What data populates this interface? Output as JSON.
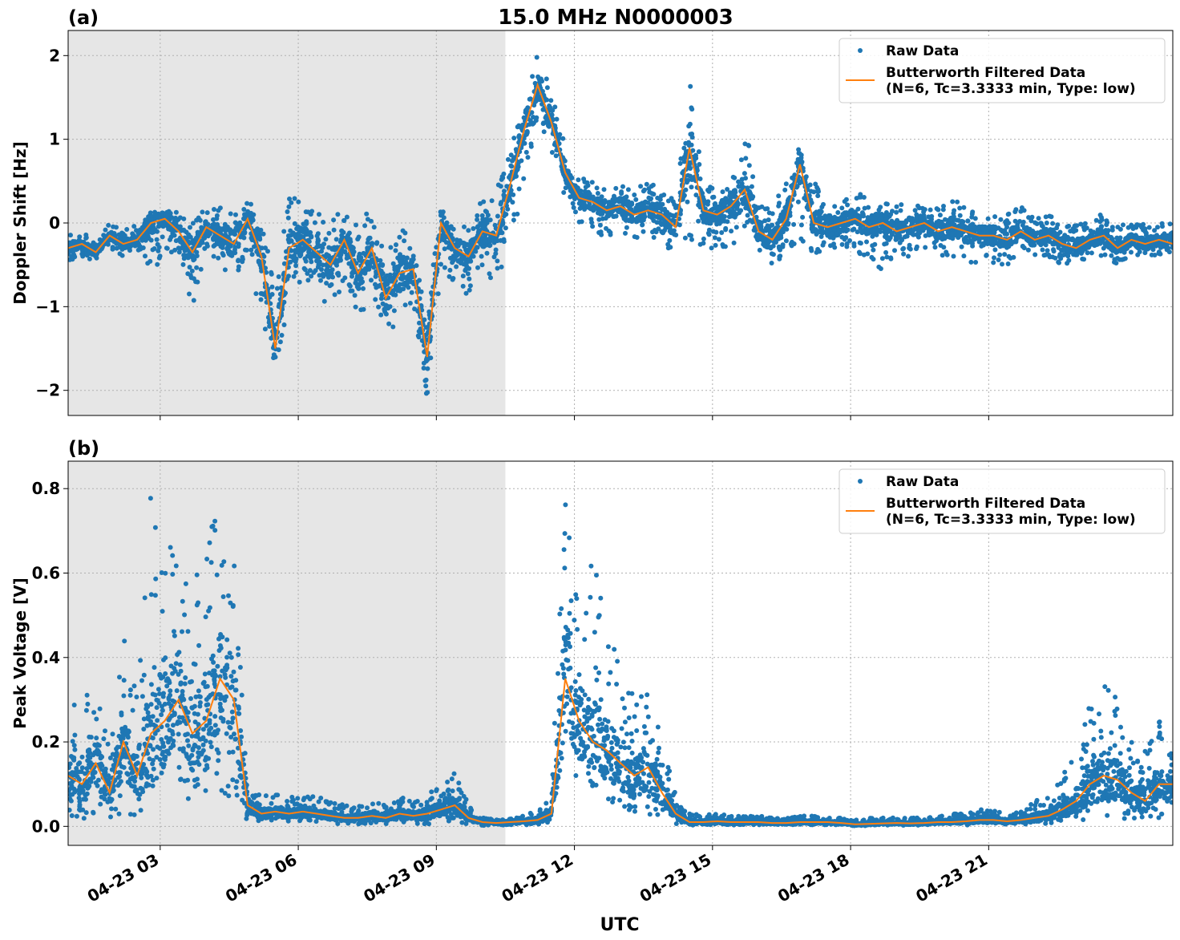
{
  "figure": {
    "title": "15.0 MHz N0000003",
    "xlabel": "UTC"
  },
  "colors": {
    "raw": "#1f77b4",
    "filtered": "#ff7f0e",
    "night_shade": "#e6e6e6",
    "grid": "#b0b0b0"
  },
  "chart_data": [
    {
      "type": "scatter",
      "panel_label": "(a)",
      "title": "15.0 MHz N0000003",
      "xlabel": "",
      "ylabel": "Doppler Shift [Hz]",
      "x_unit": "hours UTC on 04-23",
      "xlim": [
        1.0,
        25.0
      ],
      "ylim": [
        -2.3,
        2.3
      ],
      "yticks": [
        -2,
        -1,
        0,
        1,
        2
      ],
      "ytick_labels": [
        "−2",
        "−1",
        "0",
        "1",
        "2"
      ],
      "shaded_region": [
        1.0,
        10.5
      ],
      "grid": true,
      "legend_position": "top-right",
      "legend": [
        "Raw Data",
        "Butterworth Filtered Data",
        "(N=6, Tc=3.3333 min, Type: low)"
      ],
      "series": [
        {
          "name": "Butterworth Filtered Data",
          "x": [
            1.0,
            1.3,
            1.6,
            1.9,
            2.2,
            2.5,
            2.8,
            3.1,
            3.4,
            3.7,
            4.0,
            4.3,
            4.6,
            4.9,
            5.2,
            5.5,
            5.8,
            6.1,
            6.4,
            6.7,
            7.0,
            7.3,
            7.6,
            7.9,
            8.2,
            8.5,
            8.8,
            9.1,
            9.4,
            9.7,
            10.0,
            10.3,
            10.6,
            10.9,
            11.2,
            11.5,
            11.8,
            12.1,
            12.4,
            12.7,
            13.0,
            13.3,
            13.6,
            13.9,
            14.2,
            14.5,
            14.8,
            15.1,
            15.4,
            15.7,
            16.0,
            16.3,
            16.6,
            16.9,
            17.2,
            17.5,
            17.8,
            18.1,
            18.4,
            18.7,
            19.0,
            19.3,
            19.6,
            19.9,
            20.2,
            20.5,
            20.8,
            21.1,
            21.4,
            21.7,
            22.0,
            22.3,
            22.6,
            22.9,
            23.2,
            23.5,
            23.8,
            24.1,
            24.4,
            24.7,
            25.0
          ],
          "y": [
            -0.3,
            -0.25,
            -0.35,
            -0.15,
            -0.25,
            -0.2,
            0.0,
            0.05,
            -0.1,
            -0.35,
            -0.05,
            -0.15,
            -0.25,
            0.05,
            -0.4,
            -1.5,
            -0.3,
            -0.2,
            -0.35,
            -0.5,
            -0.2,
            -0.6,
            -0.3,
            -0.9,
            -0.6,
            -0.55,
            -1.6,
            0.0,
            -0.3,
            -0.4,
            -0.1,
            -0.15,
            0.45,
            1.1,
            1.65,
            1.2,
            0.6,
            0.3,
            0.25,
            0.15,
            0.2,
            0.1,
            0.15,
            0.1,
            -0.05,
            0.9,
            0.15,
            0.1,
            0.2,
            0.4,
            -0.1,
            -0.2,
            0.05,
            0.7,
            0.0,
            -0.05,
            0.0,
            0.05,
            -0.05,
            0.0,
            -0.1,
            -0.05,
            0.0,
            -0.1,
            -0.05,
            -0.1,
            -0.15,
            -0.15,
            -0.2,
            -0.1,
            -0.2,
            -0.15,
            -0.25,
            -0.3,
            -0.2,
            -0.15,
            -0.3,
            -0.2,
            -0.25,
            -0.2,
            -0.25
          ]
        },
        {
          "name": "Raw Data",
          "x": [
            1.0,
            1.3,
            1.6,
            1.9,
            2.2,
            2.5,
            2.8,
            3.1,
            3.4,
            3.7,
            4.0,
            4.3,
            4.6,
            4.9,
            5.2,
            5.5,
            5.8,
            6.1,
            6.4,
            6.7,
            7.0,
            7.3,
            7.6,
            7.9,
            8.2,
            8.5,
            8.8,
            9.1,
            9.4,
            9.7,
            10.0,
            10.3,
            10.6,
            10.9,
            11.2,
            11.5,
            11.8,
            12.1,
            12.4,
            12.7,
            13.0,
            13.3,
            13.6,
            13.9,
            14.2,
            14.5,
            14.8,
            15.1,
            15.4,
            15.7,
            16.0,
            16.3,
            16.6,
            16.9,
            17.2,
            17.5,
            17.8,
            18.1,
            18.4,
            18.7,
            19.0,
            19.3,
            19.6,
            19.9,
            20.2,
            20.5,
            20.8,
            21.1,
            21.4,
            21.7,
            22.0,
            22.3,
            22.6,
            22.9,
            23.2,
            23.5,
            23.8,
            24.1,
            24.4,
            24.7,
            25.0
          ],
          "y_min": [
            -0.5,
            -0.4,
            -0.5,
            -0.3,
            -0.4,
            -0.4,
            -0.7,
            -0.3,
            -0.4,
            -1.0,
            -0.3,
            -0.5,
            -0.8,
            -0.3,
            -1.2,
            -1.95,
            -0.9,
            -0.7,
            -0.8,
            -1.1,
            -0.7,
            -1.2,
            -0.8,
            -1.4,
            -1.2,
            -1.0,
            -2.1,
            -0.6,
            -0.7,
            -0.9,
            -0.6,
            -0.7,
            -0.3,
            0.4,
            1.3,
            0.8,
            0.3,
            0.0,
            -0.1,
            -0.2,
            -0.1,
            -0.2,
            -0.1,
            -0.3,
            -0.35,
            -0.2,
            -0.3,
            -0.3,
            -0.3,
            -0.2,
            -0.4,
            -0.5,
            -0.4,
            -0.2,
            -0.4,
            -0.5,
            -0.3,
            -0.35,
            -0.4,
            -0.6,
            -0.4,
            -0.4,
            -0.3,
            -0.4,
            -0.4,
            -0.5,
            -0.5,
            -0.5,
            -0.5,
            -0.4,
            -0.4,
            -0.4,
            -0.5,
            -0.5,
            -0.4,
            -0.4,
            -0.5,
            -0.4,
            -0.4,
            -0.4,
            -0.4
          ],
          "y_max": [
            -0.1,
            -0.1,
            -0.2,
            0.0,
            -0.1,
            0.0,
            0.1,
            0.15,
            0.2,
            0.0,
            0.2,
            0.2,
            0.1,
            0.3,
            0.1,
            -0.8,
            0.4,
            0.3,
            0.2,
            0.0,
            0.2,
            0.0,
            0.2,
            -0.2,
            -0.1,
            0.0,
            -1.0,
            0.2,
            0.1,
            0.0,
            0.3,
            0.4,
            0.9,
            1.4,
            2.05,
            1.6,
            0.9,
            0.6,
            0.5,
            0.4,
            0.5,
            0.45,
            0.5,
            0.4,
            0.3,
            1.75,
            0.5,
            0.45,
            0.5,
            1.2,
            0.4,
            0.2,
            0.5,
            0.95,
            0.5,
            0.3,
            0.3,
            0.4,
            0.3,
            0.3,
            0.2,
            0.3,
            0.3,
            0.2,
            0.3,
            0.3,
            0.1,
            0.15,
            0.1,
            0.2,
            0.1,
            0.1,
            0.0,
            0.0,
            0.1,
            0.1,
            0.0,
            0.0,
            0.0,
            0.0,
            0.0
          ]
        }
      ]
    },
    {
      "type": "scatter",
      "panel_label": "(b)",
      "title": "",
      "xlabel": "UTC",
      "ylabel": "Peak Voltage [V]",
      "x_unit": "hours UTC on 04-23",
      "xlim": [
        1.0,
        25.0
      ],
      "ylim": [
        -0.045,
        0.865
      ],
      "yticks": [
        0.0,
        0.2,
        0.4,
        0.6,
        0.8
      ],
      "ytick_labels": [
        "0.0",
        "0.2",
        "0.4",
        "0.6",
        "0.8"
      ],
      "xticks": [
        3,
        6,
        9,
        12,
        15,
        18,
        21
      ],
      "xtick_labels": [
        "04-23 03",
        "04-23 06",
        "04-23 09",
        "04-23 12",
        "04-23 15",
        "04-23 18",
        "04-23 21"
      ],
      "shaded_region": [
        1.0,
        10.5
      ],
      "grid": true,
      "legend_position": "top-right",
      "legend": [
        "Raw Data",
        "Butterworth Filtered Data",
        "(N=6, Tc=3.3333 min, Type: low)"
      ],
      "series": [
        {
          "name": "Butterworth Filtered Data",
          "x": [
            1.0,
            1.3,
            1.6,
            1.9,
            2.2,
            2.5,
            2.8,
            3.1,
            3.4,
            3.7,
            4.0,
            4.3,
            4.6,
            4.9,
            5.2,
            5.5,
            5.8,
            6.1,
            6.4,
            6.7,
            7.0,
            7.3,
            7.6,
            7.9,
            8.2,
            8.5,
            8.8,
            9.1,
            9.4,
            9.7,
            10.0,
            10.3,
            10.6,
            10.9,
            11.2,
            11.5,
            11.8,
            12.1,
            12.4,
            12.7,
            13.0,
            13.3,
            13.6,
            13.9,
            14.2,
            14.5,
            14.8,
            15.1,
            15.4,
            15.7,
            16.0,
            16.3,
            16.6,
            16.9,
            17.2,
            17.5,
            17.8,
            18.1,
            18.4,
            18.7,
            19.0,
            19.3,
            19.6,
            19.9,
            20.2,
            20.5,
            20.8,
            21.1,
            21.4,
            21.7,
            22.0,
            22.3,
            22.6,
            22.9,
            23.2,
            23.5,
            23.8,
            24.1,
            24.4,
            24.7,
            25.0
          ],
          "y": [
            0.12,
            0.1,
            0.15,
            0.08,
            0.2,
            0.12,
            0.22,
            0.25,
            0.3,
            0.22,
            0.25,
            0.35,
            0.3,
            0.05,
            0.03,
            0.035,
            0.03,
            0.035,
            0.03,
            0.025,
            0.02,
            0.02,
            0.025,
            0.02,
            0.03,
            0.025,
            0.03,
            0.04,
            0.05,
            0.02,
            0.01,
            0.008,
            0.01,
            0.012,
            0.015,
            0.03,
            0.35,
            0.25,
            0.2,
            0.18,
            0.15,
            0.12,
            0.14,
            0.08,
            0.03,
            0.01,
            0.01,
            0.012,
            0.01,
            0.01,
            0.01,
            0.008,
            0.008,
            0.01,
            0.01,
            0.01,
            0.008,
            0.005,
            0.006,
            0.007,
            0.008,
            0.007,
            0.008,
            0.01,
            0.01,
            0.012,
            0.015,
            0.015,
            0.012,
            0.015,
            0.02,
            0.025,
            0.04,
            0.06,
            0.1,
            0.12,
            0.11,
            0.08,
            0.06,
            0.1,
            0.1
          ]
        },
        {
          "name": "Raw Data",
          "x": [
            1.0,
            1.3,
            1.6,
            1.9,
            2.2,
            2.5,
            2.8,
            3.1,
            3.4,
            3.7,
            4.0,
            4.3,
            4.6,
            4.9,
            5.2,
            5.5,
            5.8,
            6.1,
            6.4,
            6.7,
            7.0,
            7.3,
            7.6,
            7.9,
            8.2,
            8.5,
            8.8,
            9.1,
            9.4,
            9.7,
            10.0,
            10.3,
            10.6,
            10.9,
            11.2,
            11.5,
            11.8,
            12.1,
            12.4,
            12.7,
            13.0,
            13.3,
            13.6,
            13.9,
            14.2,
            14.5,
            14.8,
            15.1,
            15.4,
            15.7,
            16.0,
            16.3,
            16.6,
            16.9,
            17.2,
            17.5,
            17.8,
            18.1,
            18.4,
            18.7,
            19.0,
            19.3,
            19.6,
            19.9,
            20.2,
            20.5,
            20.8,
            21.1,
            21.4,
            21.7,
            22.0,
            22.3,
            22.6,
            22.9,
            23.2,
            23.5,
            23.8,
            24.1,
            24.4,
            24.7,
            25.0
          ],
          "y_min": [
            0.01,
            0.01,
            0.02,
            0.01,
            0.03,
            0.02,
            0.03,
            0.05,
            0.05,
            0.04,
            0.05,
            0.08,
            0.06,
            0.01,
            0.01,
            0.01,
            0.01,
            0.01,
            0.01,
            0.005,
            0.005,
            0.005,
            0.005,
            0.005,
            0.01,
            0.005,
            0.005,
            0.01,
            0.01,
            0.005,
            0.002,
            0.002,
            0.002,
            0.003,
            0.003,
            0.005,
            0.0,
            0.05,
            0.05,
            0.04,
            0.03,
            0.03,
            0.03,
            0.02,
            0.005,
            0.003,
            0.003,
            0.003,
            0.003,
            0.003,
            0.003,
            0.003,
            0.002,
            0.003,
            0.003,
            0.003,
            0.002,
            0.001,
            0.001,
            0.002,
            0.002,
            0.002,
            0.002,
            0.003,
            0.003,
            0.003,
            0.005,
            0.005,
            0.003,
            0.005,
            0.005,
            0.005,
            0.01,
            0.01,
            0.02,
            0.02,
            0.02,
            0.015,
            0.01,
            0.02,
            0.02
          ],
          "y_max": [
            0.26,
            0.42,
            0.35,
            0.2,
            0.5,
            0.3,
            0.79,
            0.7,
            0.63,
            0.55,
            0.73,
            0.74,
            0.65,
            0.1,
            0.07,
            0.08,
            0.07,
            0.08,
            0.07,
            0.06,
            0.05,
            0.05,
            0.06,
            0.05,
            0.07,
            0.06,
            0.08,
            0.1,
            0.13,
            0.05,
            0.02,
            0.02,
            0.02,
            0.03,
            0.04,
            0.08,
            0.82,
            0.55,
            0.66,
            0.48,
            0.39,
            0.35,
            0.33,
            0.2,
            0.08,
            0.03,
            0.03,
            0.03,
            0.025,
            0.025,
            0.025,
            0.02,
            0.02,
            0.025,
            0.025,
            0.02,
            0.02,
            0.015,
            0.02,
            0.02,
            0.02,
            0.02,
            0.02,
            0.025,
            0.03,
            0.03,
            0.04,
            0.04,
            0.03,
            0.04,
            0.06,
            0.08,
            0.12,
            0.18,
            0.3,
            0.35,
            0.3,
            0.22,
            0.18,
            0.25,
            0.2
          ]
        }
      ]
    }
  ]
}
